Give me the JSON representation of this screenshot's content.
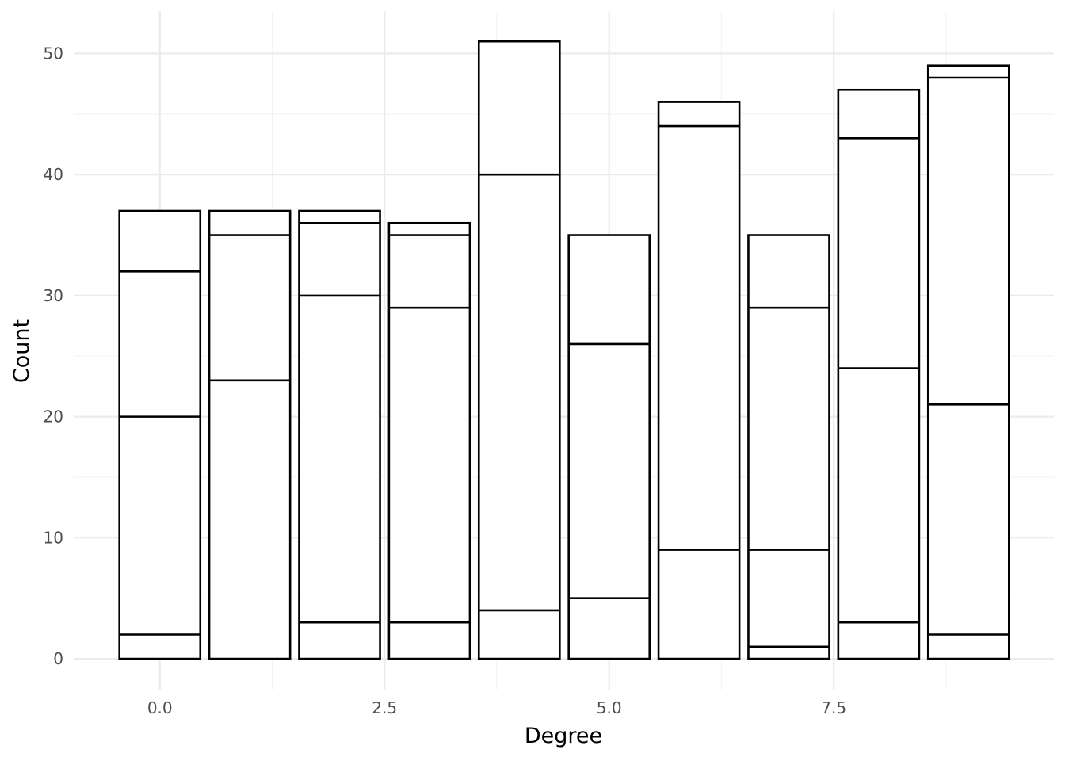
{
  "chart_data": {
    "type": "bar",
    "stacked": true,
    "title": "",
    "xlabel": "Degree",
    "ylabel": "Count",
    "xlim": [
      -0.95,
      9.95
    ],
    "ylim": [
      -2.55,
      53.5
    ],
    "x_ticks": [
      {
        "value": 0,
        "label": "0.0"
      },
      {
        "value": 2.5,
        "label": "2.5"
      },
      {
        "value": 5,
        "label": "5.0"
      },
      {
        "value": 7.5,
        "label": "7.5"
      }
    ],
    "y_ticks": [
      {
        "value": 0,
        "label": "0"
      },
      {
        "value": 10,
        "label": "10"
      },
      {
        "value": 20,
        "label": "20"
      },
      {
        "value": 30,
        "label": "30"
      },
      {
        "value": 40,
        "label": "40"
      },
      {
        "value": 50,
        "label": "50"
      }
    ],
    "bar_width": 0.9,
    "grid": true,
    "legend": "none",
    "bars": [
      {
        "x": 0,
        "total": 37,
        "boundaries": [
          2,
          20,
          32
        ]
      },
      {
        "x": 1,
        "total": 37,
        "boundaries": [
          23,
          35
        ]
      },
      {
        "x": 2,
        "total": 37,
        "boundaries": [
          3,
          30,
          36
        ]
      },
      {
        "x": 3,
        "total": 36,
        "boundaries": [
          3,
          29,
          35
        ]
      },
      {
        "x": 4,
        "total": 51,
        "boundaries": [
          4,
          40
        ]
      },
      {
        "x": 5,
        "total": 35,
        "boundaries": [
          5,
          26
        ]
      },
      {
        "x": 6,
        "total": 46,
        "boundaries": [
          9,
          44
        ]
      },
      {
        "x": 7,
        "total": 35,
        "boundaries": [
          1,
          9,
          29
        ]
      },
      {
        "x": 8,
        "total": 47,
        "boundaries": [
          3,
          24,
          43
        ]
      },
      {
        "x": 9,
        "total": 49,
        "boundaries": [
          2,
          21,
          48
        ]
      }
    ],
    "colors": {
      "fill": "#ffffff",
      "outline": "#000000",
      "grid_major": "#ebebeb",
      "grid_minor": "#f3f3f3",
      "tick_text": "#4d4d4d"
    }
  }
}
